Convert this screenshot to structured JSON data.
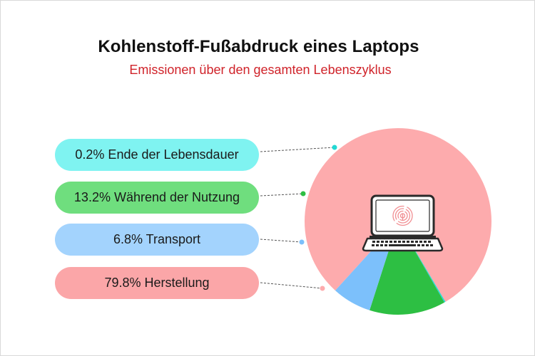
{
  "chart_data": {
    "type": "pie",
    "title": "Kohlenstoff-Fußabdruck eines Laptops",
    "subtitle": "Emissionen über den gesamten Lebenszyklus",
    "slices": [
      {
        "label": "Ende der Lebensdauer",
        "value": 0.2,
        "display": "0.2% Ende der Lebensdauer",
        "color": "#22d9d4",
        "pill_color": "#7ff3f1"
      },
      {
        "label": "Während der Nutzung",
        "value": 13.2,
        "display": "13.2% Während der Nutzung",
        "color": "#2dbf43",
        "pill_color": "#6fde7e"
      },
      {
        "label": "Transport",
        "value": 6.8,
        "display": "6.8% Transport",
        "color": "#7cc0fb",
        "pill_color": "#a3d3fd"
      },
      {
        "label": "Herstellung",
        "value": 79.8,
        "display": "79.8% Herstellung",
        "color": "#fdabad",
        "pill_color": "#fba6a8"
      }
    ],
    "legend_placement": "left"
  },
  "icon": "laptop-fingerprint-icon"
}
